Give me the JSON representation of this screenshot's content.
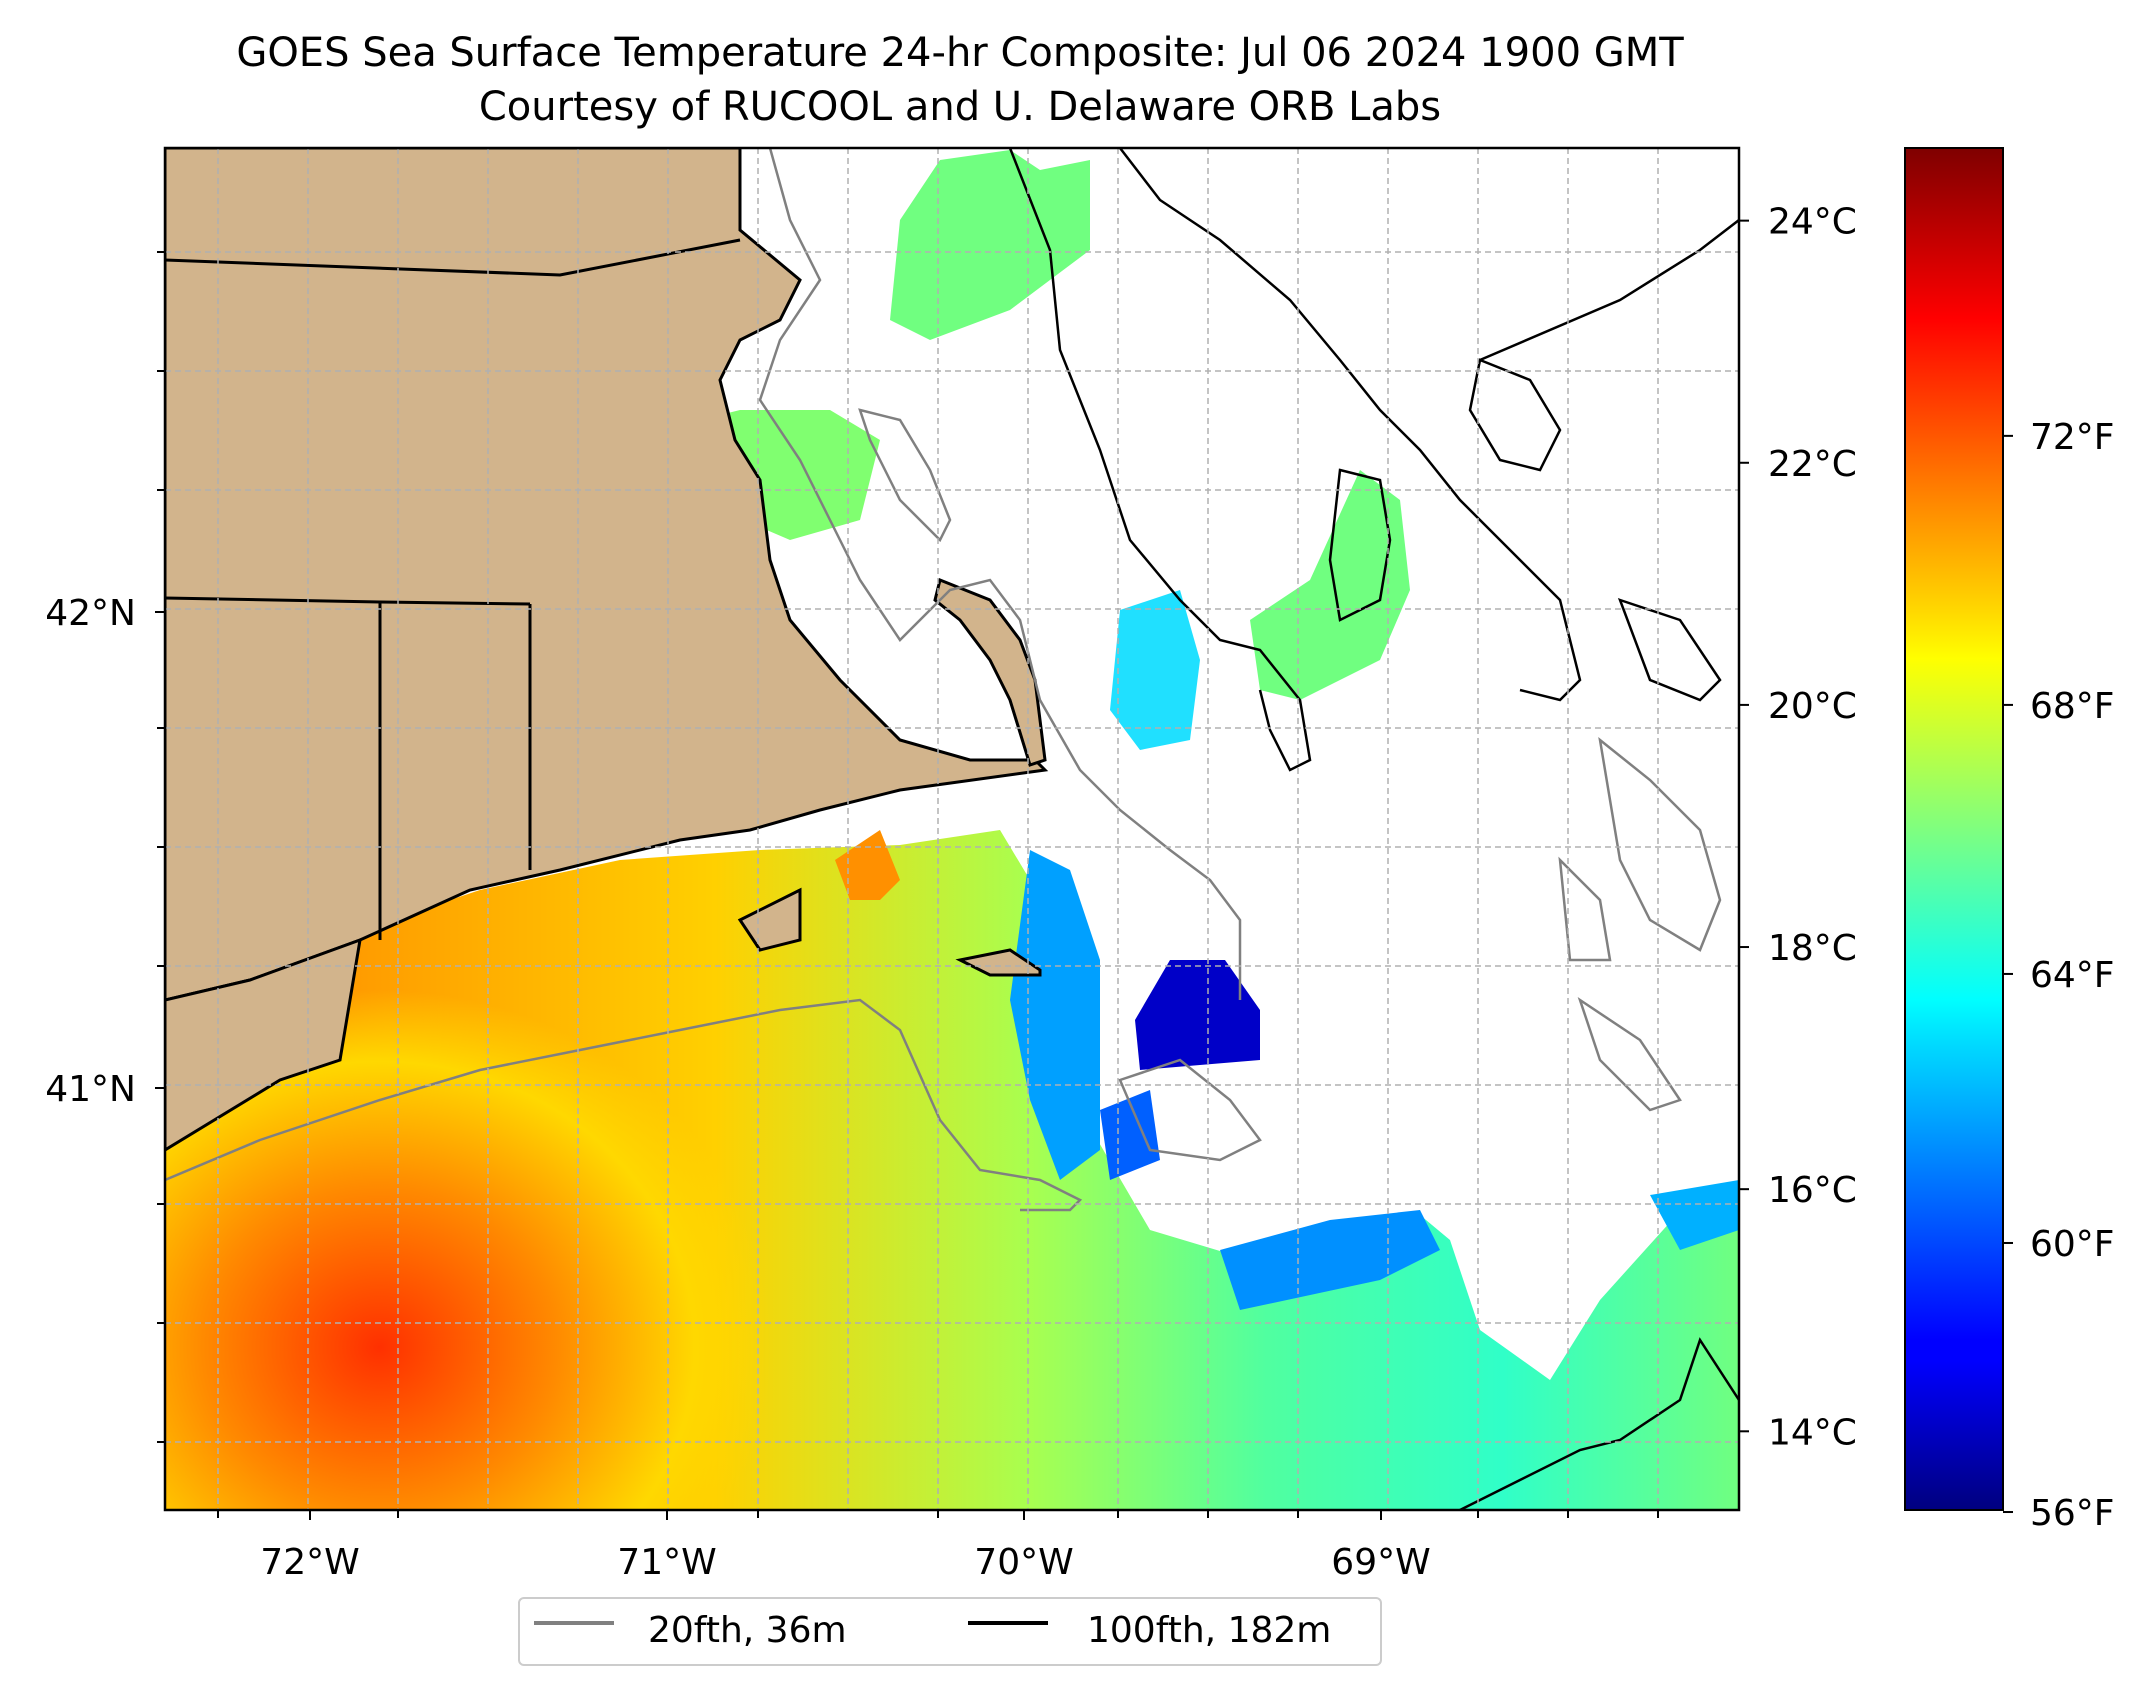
{
  "title": {
    "line1": "GOES Sea Surface Temperature 24-hr Composite: Jul 06 2024 1900 GMT",
    "line2": "Courtesy of RUCOOL and U. Delaware ORB Labs"
  },
  "map": {
    "lon_ticks": [
      {
        "value": -72,
        "label": "72°W"
      },
      {
        "value": -71,
        "label": "71°W"
      },
      {
        "value": -70,
        "label": "70°W"
      },
      {
        "value": -69,
        "label": "69°W"
      }
    ],
    "lat_ticks": [
      {
        "value": 42,
        "label": "42°N"
      },
      {
        "value": 41,
        "label": "41°N"
      }
    ],
    "land_color": "#d2b48c",
    "grid": true
  },
  "colorbar": {
    "colormap": "jet",
    "celsius_ticks": [
      {
        "value": 24,
        "label": "24°C"
      },
      {
        "value": 22,
        "label": "22°C"
      },
      {
        "value": 20,
        "label": "20°C"
      },
      {
        "value": 18,
        "label": "18°C"
      },
      {
        "value": 16,
        "label": "16°C"
      },
      {
        "value": 14,
        "label": "14°C"
      }
    ],
    "fahrenheit_ticks": [
      {
        "value": 72,
        "label": "72°F"
      },
      {
        "value": 68,
        "label": "68°F"
      },
      {
        "value": 64,
        "label": "64°F"
      },
      {
        "value": 60,
        "label": "60°F"
      },
      {
        "value": 56,
        "label": "56°F"
      }
    ]
  },
  "legend": {
    "items": [
      {
        "label": "20fth, 36m",
        "color": "#808080"
      },
      {
        "label": "100fth, 182m",
        "color": "#000000"
      }
    ]
  }
}
